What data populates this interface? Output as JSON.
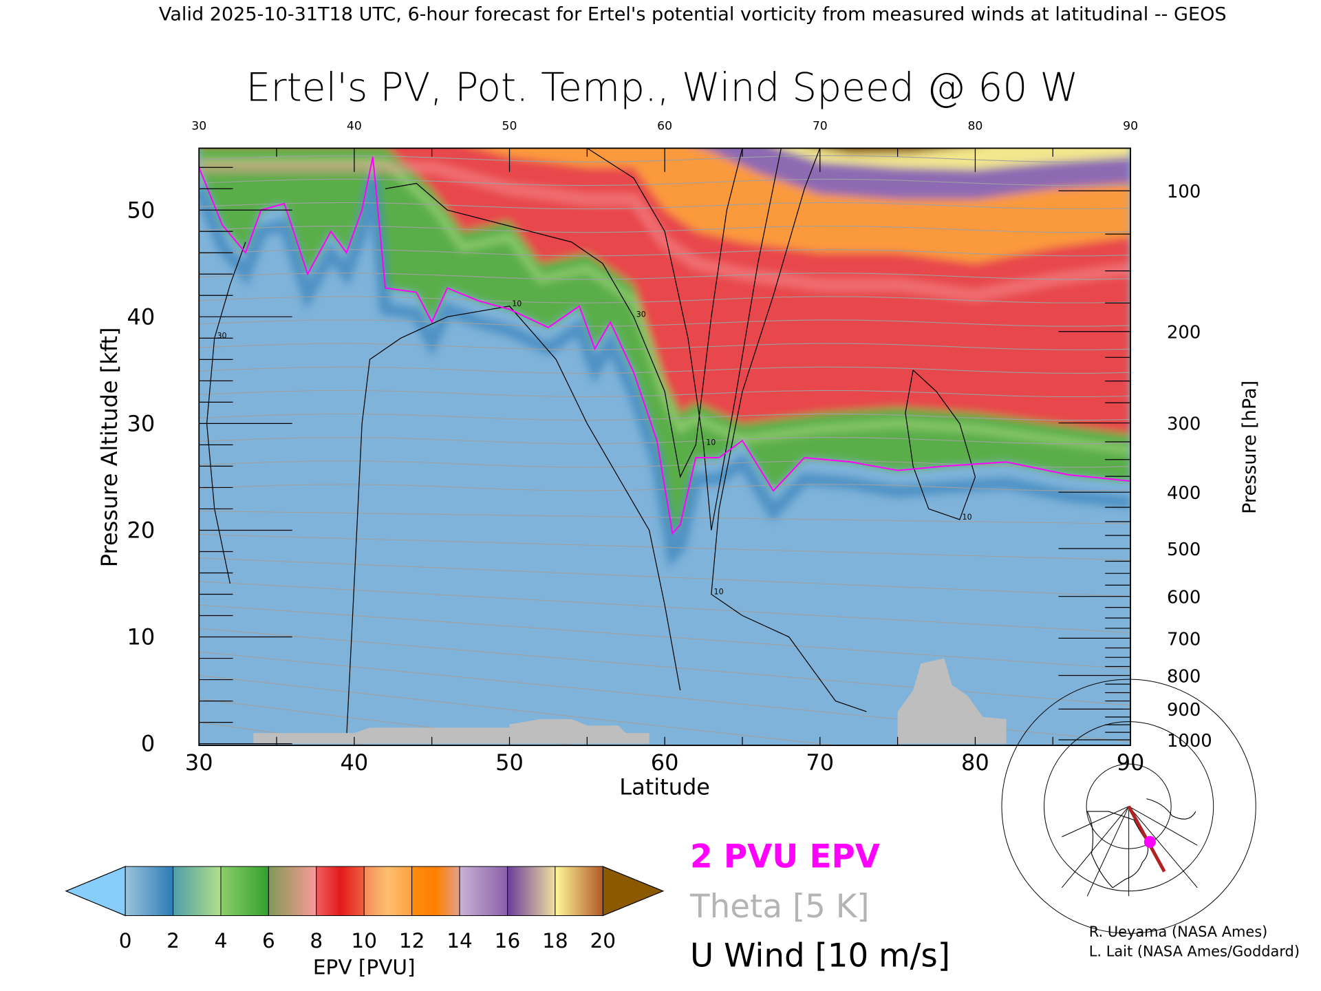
{
  "header": {
    "caption": "Valid 2025-10-31T18 UTC, 6-hour forecast for Ertel's potential vorticity from measured winds at latitudinal -- GEOS"
  },
  "chart_data": {
    "type": "heatmap",
    "title": "Ertel's PV, Pot. Temp., Wind Speed @ 60 W",
    "xlabel": "Latitude",
    "ylabel": "Pressure Altitude [kft]",
    "y2label": "Pressure [hPa]",
    "xlim": [
      30,
      90
    ],
    "ylim": [
      0,
      55.8
    ],
    "x_ticks": [
      "30",
      "40",
      "50",
      "60",
      "70",
      "80",
      "90"
    ],
    "x_tick_values": [
      30,
      40,
      50,
      60,
      70,
      80,
      90
    ],
    "y_ticks": [
      "0",
      "10",
      "20",
      "30",
      "40",
      "50"
    ],
    "y_tick_values": [
      0,
      10,
      20,
      30,
      40,
      50
    ],
    "y2_ticks": [
      "100",
      "200",
      "300",
      "400",
      "500",
      "600",
      "700",
      "800",
      "900",
      "1000"
    ],
    "y2_tick_values": [
      100,
      200,
      300,
      400,
      500,
      600,
      700,
      800,
      900,
      1000
    ],
    "colorbar": {
      "label": "EPV [PVU]",
      "ticks": [
        "0",
        "2",
        "4",
        "6",
        "8",
        "10",
        "12",
        "14",
        "16",
        "18",
        "20"
      ],
      "range": [
        0,
        20
      ],
      "under_color": "#87cefa",
      "over_color": "#8b5a00",
      "segments": [
        {
          "from": 0,
          "to": 2,
          "colors": [
            "#9ac4dc",
            "#2c7bb6"
          ]
        },
        {
          "from": 2,
          "to": 4,
          "colors": [
            "#4f9fa8",
            "#b2df8a"
          ]
        },
        {
          "from": 4,
          "to": 6,
          "colors": [
            "#8ccf6a",
            "#33a02c"
          ]
        },
        {
          "from": 6,
          "to": 8,
          "colors": [
            "#7f9a55",
            "#fb9a99"
          ]
        },
        {
          "from": 8,
          "to": 10,
          "colors": [
            "#f06060",
            "#e31a1c",
            "#f06040"
          ]
        },
        {
          "from": 10,
          "to": 12,
          "colors": [
            "#f58c5a",
            "#fdbf6f",
            "#fda040"
          ]
        },
        {
          "from": 12,
          "to": 14,
          "colors": [
            "#fd8c10",
            "#ff7f00",
            "#e0a090"
          ]
        },
        {
          "from": 14,
          "to": 16,
          "colors": [
            "#cab2d6",
            "#8a60a8"
          ]
        },
        {
          "from": 16,
          "to": 18,
          "colors": [
            "#6a3d9a",
            "#f0e0a0"
          ]
        },
        {
          "from": 18,
          "to": 20,
          "colors": [
            "#fff899",
            "#b15928"
          ]
        }
      ]
    },
    "pv_boundaries_kft": {
      "pv2": [
        [
          30,
          54
        ],
        [
          31.5,
          48.6
        ],
        [
          33,
          46
        ],
        [
          34,
          50
        ],
        [
          35.5,
          50.6
        ],
        [
          37,
          44
        ],
        [
          38.5,
          48
        ],
        [
          39.5,
          46
        ],
        [
          40.5,
          50
        ],
        [
          41.2,
          55
        ],
        [
          42,
          42.7
        ],
        [
          44,
          42.3
        ],
        [
          45,
          39.5
        ],
        [
          46,
          42.7
        ],
        [
          48,
          41.5
        ],
        [
          50,
          40.7
        ],
        [
          52.5,
          39
        ],
        [
          54.5,
          41
        ],
        [
          55.5,
          37
        ],
        [
          56.5,
          39.5
        ],
        [
          58,
          34.8
        ],
        [
          59.5,
          28.4
        ],
        [
          60.5,
          19.7
        ],
        [
          61,
          20.5
        ],
        [
          62,
          26.8
        ],
        [
          63.5,
          26.8
        ],
        [
          65,
          28.4
        ],
        [
          67,
          23.7
        ],
        [
          69,
          26.8
        ],
        [
          72,
          26.4
        ],
        [
          75,
          25.6
        ],
        [
          78,
          26
        ],
        [
          82,
          26.4
        ],
        [
          86,
          25.2
        ],
        [
          90,
          24.6
        ]
      ],
      "pv6": [
        [
          30,
          56
        ],
        [
          36,
          56
        ],
        [
          42,
          56
        ],
        [
          45,
          52
        ],
        [
          47,
          48
        ],
        [
          50,
          49
        ],
        [
          52,
          45
        ],
        [
          55,
          46
        ],
        [
          58,
          43
        ],
        [
          60,
          34
        ],
        [
          61,
          31
        ],
        [
          62,
          32
        ],
        [
          65,
          30
        ],
        [
          70,
          31
        ],
        [
          75,
          31.5
        ],
        [
          80,
          31
        ],
        [
          85,
          30
        ],
        [
          90,
          29
        ]
      ],
      "pv10": [
        [
          30,
          57
        ],
        [
          45,
          57
        ],
        [
          50,
          55
        ],
        [
          55,
          54
        ],
        [
          58,
          54
        ],
        [
          60,
          50
        ],
        [
          62,
          48
        ],
        [
          65,
          47
        ],
        [
          70,
          46
        ],
        [
          75,
          46
        ],
        [
          80,
          45
        ],
        [
          85,
          46.5
        ],
        [
          90,
          47.5
        ]
      ],
      "pv14": [
        [
          57,
          58
        ],
        [
          60,
          57
        ],
        [
          63,
          55.5
        ],
        [
          66,
          53.5
        ],
        [
          70,
          51.5
        ],
        [
          75,
          51
        ],
        [
          80,
          51
        ],
        [
          85,
          52
        ],
        [
          90,
          52.5
        ]
      ],
      "pv18": [
        [
          64,
          58
        ],
        [
          67,
          56
        ],
        [
          70,
          54.5
        ],
        [
          75,
          54
        ],
        [
          80,
          53.8
        ],
        [
          85,
          54.5
        ],
        [
          90,
          55
        ]
      ],
      "pv20": [
        [
          67,
          58
        ],
        [
          69,
          56
        ],
        [
          72,
          55.2
        ],
        [
          76,
          55.3
        ],
        [
          80,
          56
        ],
        [
          83,
          57
        ],
        [
          84,
          58
        ]
      ]
    },
    "wind_contours": [
      {
        "label": "30",
        "points": [
          [
            42,
            52
          ],
          [
            44,
            52.5
          ],
          [
            46,
            50
          ],
          [
            50,
            48.5
          ],
          [
            54,
            47
          ],
          [
            56,
            45
          ],
          [
            58,
            40
          ],
          [
            60,
            33
          ],
          [
            61,
            25
          ],
          [
            62,
            28
          ],
          [
            63,
            40
          ],
          [
            64,
            50
          ],
          [
            65,
            55.8
          ]
        ]
      },
      {
        "label": "10",
        "points": [
          [
            55,
            55.8
          ],
          [
            58,
            53
          ],
          [
            60,
            48
          ],
          [
            61.5,
            38
          ],
          [
            62.5,
            28
          ],
          [
            63,
            20
          ],
          [
            64.5,
            32
          ],
          [
            66,
            45
          ],
          [
            67.5,
            55.8
          ]
        ]
      },
      {
        "label": "10",
        "points": [
          [
            70,
            55.8
          ],
          [
            69,
            52
          ],
          [
            67,
            42
          ],
          [
            65,
            33
          ],
          [
            63.5,
            22
          ],
          [
            63,
            14
          ],
          [
            65,
            12
          ],
          [
            68,
            10
          ],
          [
            71,
            4
          ],
          [
            73,
            3
          ]
        ]
      },
      {
        "label": "10",
        "points": [
          [
            39.5,
            0.5
          ],
          [
            40,
            15
          ],
          [
            40.5,
            30
          ],
          [
            41,
            36
          ],
          [
            43,
            38
          ],
          [
            46,
            40
          ],
          [
            50,
            41
          ],
          [
            53,
            36
          ],
          [
            55,
            30
          ],
          [
            57,
            25
          ],
          [
            59,
            20
          ],
          [
            60,
            13
          ],
          [
            61,
            5
          ]
        ]
      },
      {
        "label": "10",
        "points": [
          [
            76,
            35
          ],
          [
            77.5,
            33
          ],
          [
            79,
            30
          ],
          [
            80,
            25
          ],
          [
            79,
            21
          ],
          [
            77,
            22
          ],
          [
            76,
            26
          ],
          [
            75.5,
            31
          ],
          [
            76,
            35
          ]
        ]
      },
      {
        "label": "30",
        "points": [
          [
            32,
            15
          ],
          [
            31,
            22
          ],
          [
            30.5,
            30
          ],
          [
            31,
            38
          ],
          [
            32,
            43
          ],
          [
            33,
            47
          ]
        ]
      }
    ],
    "terrain_kft": [
      [
        [
          33.5,
          0
        ],
        [
          33.5,
          1
        ],
        [
          40,
          1
        ],
        [
          41,
          1.5
        ],
        [
          50,
          1.5
        ],
        [
          50,
          1.8
        ],
        [
          52,
          2.3
        ],
        [
          54,
          2.3
        ],
        [
          55,
          1.7
        ],
        [
          57,
          1.7
        ],
        [
          57.5,
          1.0
        ],
        [
          59,
          1
        ],
        [
          59,
          0
        ]
      ],
      [
        [
          75,
          0
        ],
        [
          75,
          3
        ],
        [
          76,
          5
        ],
        [
          76.5,
          7.5
        ],
        [
          78,
          8
        ],
        [
          78.5,
          5.5
        ],
        [
          79.5,
          4.5
        ],
        [
          80.5,
          2.5
        ],
        [
          82,
          2.3
        ],
        [
          82,
          0
        ]
      ]
    ],
    "inset_map": {
      "section_longitude": "60 W",
      "marker_color": "#ff00ff",
      "track_color": "#b22222"
    }
  },
  "legend": {
    "pv_line": "2 PVU EPV",
    "theta": "Theta [5 K]",
    "wind": "U Wind [10 m/s]",
    "pv_color": "#ff00ff",
    "theta_color": "#b4b4b4"
  },
  "credits": {
    "line1": "R. Ueyama (NASA Ames)",
    "line2": "L. Lait (NASA Ames/Goddard)"
  }
}
